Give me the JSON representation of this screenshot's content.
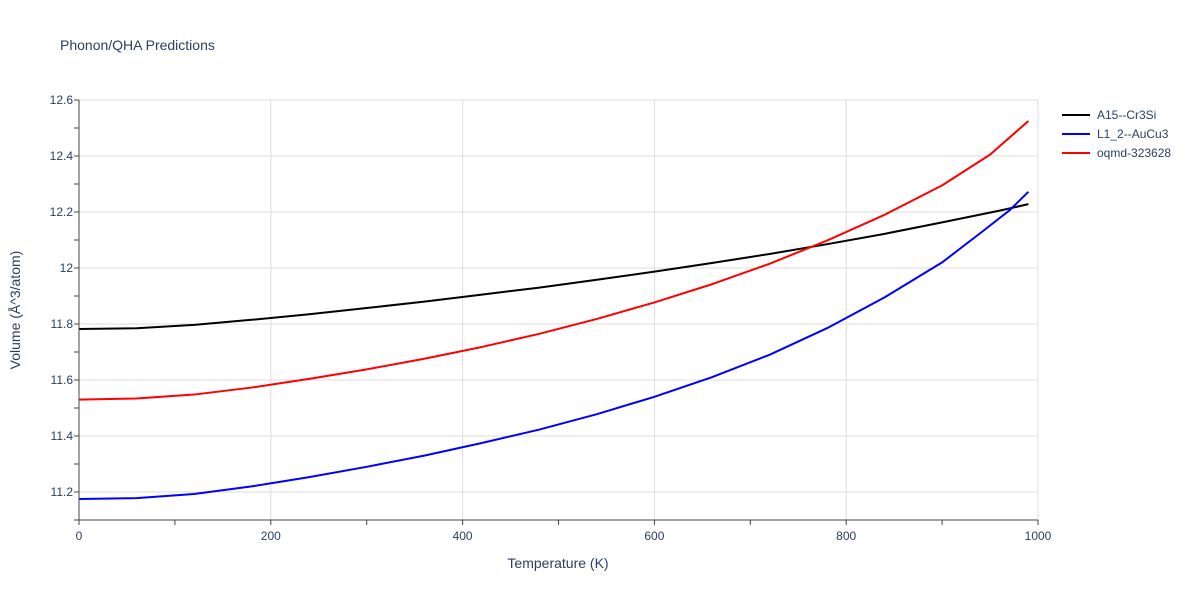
{
  "chart_data": {
    "type": "line",
    "title": "Phonon/QHA Predictions",
    "xlabel": "Temperature (K)",
    "ylabel": "Volume (Å^3/atom)",
    "xlim": [
      0,
      1000
    ],
    "ylim": [
      11.1,
      12.6
    ],
    "xticks": [
      0,
      200,
      400,
      600,
      800,
      1000
    ],
    "xtick_labels": [
      "0",
      "200",
      "400",
      "600",
      "800",
      "1000"
    ],
    "yticks": [
      11.2,
      11.4,
      11.6,
      11.8,
      12.0,
      12.2,
      12.4,
      12.6
    ],
    "ytick_labels": [
      "11.2",
      "11.4",
      "11.6",
      "11.8",
      "12",
      "12.2",
      "12.4",
      "12.6"
    ],
    "grid": true,
    "legend_position": "top-right",
    "series": [
      {
        "name": "A15--Cr3Si",
        "color": "#000000",
        "x": [
          0,
          60,
          120,
          180,
          240,
          300,
          360,
          420,
          480,
          540,
          600,
          660,
          720,
          780,
          840,
          900,
          960,
          990
        ],
        "y": [
          11.782,
          11.785,
          11.797,
          11.815,
          11.835,
          11.857,
          11.88,
          11.905,
          11.93,
          11.958,
          11.987,
          12.018,
          12.05,
          12.085,
          12.122,
          12.163,
          12.205,
          12.228
        ]
      },
      {
        "name": "L1_2--AuCu3",
        "color": "#0000ff",
        "x": [
          0,
          60,
          120,
          180,
          240,
          300,
          360,
          420,
          480,
          540,
          600,
          660,
          720,
          780,
          840,
          900,
          940,
          970,
          990
        ],
        "y": [
          11.175,
          11.178,
          11.193,
          11.22,
          11.253,
          11.29,
          11.33,
          11.375,
          11.423,
          11.478,
          11.54,
          11.61,
          11.69,
          11.785,
          11.895,
          12.02,
          12.125,
          12.205,
          12.272
        ]
      },
      {
        "name": "oqmd-323628",
        "color": "#ff0000",
        "x": [
          0,
          60,
          120,
          180,
          240,
          300,
          360,
          420,
          480,
          540,
          600,
          660,
          720,
          780,
          840,
          900,
          950,
          990
        ],
        "y": [
          11.53,
          11.534,
          11.548,
          11.573,
          11.604,
          11.638,
          11.676,
          11.718,
          11.765,
          11.818,
          11.877,
          11.942,
          12.015,
          12.098,
          12.19,
          12.295,
          12.405,
          12.525
        ]
      }
    ]
  }
}
